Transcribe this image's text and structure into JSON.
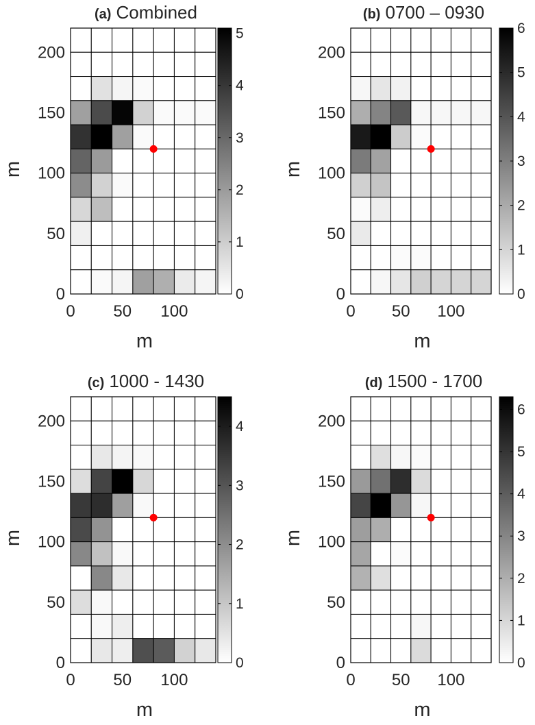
{
  "chart_data": [
    {
      "type": "heatmap",
      "title_tag": "(a)",
      "title": "Combined",
      "xlabel": "m",
      "ylabel": "m",
      "x_ticks": [
        0,
        50,
        100
      ],
      "y_ticks": [
        0,
        50,
        100,
        150,
        200
      ],
      "xlim": [
        0,
        140
      ],
      "ylim": [
        0,
        220
      ],
      "cell_size": 20,
      "colorbar_range": [
        0,
        5.1
      ],
      "colorbar_ticks": [
        0,
        1,
        2,
        3,
        4,
        5
      ],
      "marker": {
        "x": 80,
        "y": 120,
        "color": "#ff0000"
      },
      "values_top_to_bottom": [
        [
          0,
          0,
          0,
          0,
          0,
          0,
          0
        ],
        [
          0,
          0,
          0,
          0,
          0,
          0,
          0
        ],
        [
          0,
          0.6,
          0.2,
          0.1,
          0,
          0,
          0
        ],
        [
          1.9,
          3.6,
          5.0,
          0.9,
          0.1,
          0.1,
          0.1
        ],
        [
          4.1,
          5.1,
          1.9,
          0.1,
          0,
          0,
          0
        ],
        [
          3.1,
          2.0,
          0,
          0,
          0,
          0,
          0
        ],
        [
          2.3,
          0.9,
          0.1,
          0,
          0,
          0,
          0
        ],
        [
          0.8,
          1.3,
          0,
          0,
          0,
          0,
          0
        ],
        [
          0.3,
          0,
          0,
          0,
          0,
          0,
          0
        ],
        [
          0,
          0,
          0,
          0,
          0,
          0,
          0
        ],
        [
          0,
          0.1,
          0.2,
          1.9,
          1.6,
          0.4,
          0.2
        ]
      ]
    },
    {
      "type": "heatmap",
      "title_tag": "(b)",
      "title": "0700 – 0930",
      "xlabel": "m",
      "ylabel": "m",
      "x_ticks": [
        0,
        50,
        100
      ],
      "y_ticks": [
        0,
        50,
        100,
        150,
        200
      ],
      "xlim": [
        0,
        140
      ],
      "ylim": [
        0,
        220
      ],
      "cell_size": 20,
      "colorbar_range": [
        0,
        6
      ],
      "colorbar_ticks": [
        0,
        1,
        2,
        3,
        4,
        5,
        6
      ],
      "marker": {
        "x": 80,
        "y": 120,
        "color": "#ff0000"
      },
      "values_top_to_bottom": [
        [
          0,
          0,
          0,
          0,
          0,
          0,
          0
        ],
        [
          0,
          0,
          0,
          0,
          0,
          0,
          0
        ],
        [
          0.2,
          0.6,
          0.3,
          0,
          0,
          0,
          0
        ],
        [
          1.9,
          2.9,
          3.9,
          0.2,
          0.2,
          0.2,
          0.2
        ],
        [
          5.4,
          6.0,
          1.2,
          0.1,
          0,
          0,
          0
        ],
        [
          3.1,
          2.2,
          0,
          0,
          0,
          0,
          0
        ],
        [
          1.1,
          1.4,
          0,
          0,
          0,
          0,
          0
        ],
        [
          0.1,
          0.4,
          0,
          0,
          0,
          0,
          0
        ],
        [
          0.5,
          0,
          0,
          0,
          0,
          0,
          0
        ],
        [
          0,
          0,
          0.1,
          0.1,
          0,
          0,
          0
        ],
        [
          0,
          0.2,
          0.6,
          1.1,
          1.0,
          1.0,
          1.0
        ]
      ]
    },
    {
      "type": "heatmap",
      "title_tag": "(c)",
      "title": "1000 - 1430",
      "xlabel": "m",
      "ylabel": "m",
      "x_ticks": [
        0,
        50,
        100
      ],
      "y_ticks": [
        0,
        50,
        100,
        150,
        200
      ],
      "xlim": [
        0,
        140
      ],
      "ylim": [
        0,
        220
      ],
      "cell_size": 20,
      "colorbar_range": [
        0,
        4.5
      ],
      "colorbar_ticks": [
        0,
        1,
        2,
        3,
        4
      ],
      "marker": {
        "x": 80,
        "y": 120,
        "color": "#ff0000"
      },
      "values_top_to_bottom": [
        [
          0,
          0,
          0,
          0,
          0,
          0,
          0
        ],
        [
          0,
          0,
          0,
          0,
          0,
          0,
          0
        ],
        [
          0,
          0.4,
          0.2,
          0.1,
          0,
          0,
          0
        ],
        [
          0.6,
          3.3,
          4.5,
          0.7,
          0,
          0,
          0
        ],
        [
          3.5,
          3.7,
          1.7,
          0.1,
          0,
          0,
          0
        ],
        [
          3.2,
          1.9,
          0,
          0,
          0,
          0,
          0
        ],
        [
          2.1,
          1.1,
          0.1,
          0,
          0,
          0,
          0
        ],
        [
          0,
          2.1,
          0.4,
          0,
          0,
          0,
          0
        ],
        [
          0.6,
          0.1,
          0,
          0,
          0,
          0,
          0
        ],
        [
          0,
          0.1,
          0.3,
          0,
          0,
          0,
          0
        ],
        [
          0,
          0.4,
          0.3,
          3.1,
          2.9,
          0.8,
          0.4
        ]
      ]
    },
    {
      "type": "heatmap",
      "title_tag": "(d)",
      "title": "1500 - 1700",
      "xlabel": "m",
      "ylabel": "m",
      "x_ticks": [
        0,
        50,
        100
      ],
      "y_ticks": [
        0,
        50,
        100,
        150,
        200
      ],
      "xlim": [
        0,
        140
      ],
      "ylim": [
        0,
        220
      ],
      "cell_size": 20,
      "colorbar_range": [
        0,
        6.3
      ],
      "colorbar_ticks": [
        0,
        1,
        2,
        3,
        4,
        5,
        6
      ],
      "marker": {
        "x": 80,
        "y": 120,
        "color": "#ff0000"
      },
      "values_top_to_bottom": [
        [
          0,
          0,
          0,
          0,
          0,
          0,
          0
        ],
        [
          0,
          0,
          0,
          0,
          0,
          0,
          0
        ],
        [
          0,
          0.8,
          0.2,
          0.1,
          0,
          0,
          0
        ],
        [
          2.5,
          3.5,
          5.2,
          0.9,
          0,
          0,
          0
        ],
        [
          4.6,
          6.3,
          2.6,
          0.2,
          0,
          0,
          0
        ],
        [
          2.4,
          2.0,
          0,
          0,
          0,
          0,
          0
        ],
        [
          2.2,
          0,
          0.1,
          0,
          0,
          0,
          0
        ],
        [
          1.9,
          0.8,
          0,
          0,
          0,
          0,
          0
        ],
        [
          0,
          0,
          0,
          0,
          0,
          0,
          0
        ],
        [
          0,
          0,
          0,
          0.2,
          0,
          0,
          0
        ],
        [
          0,
          0,
          0,
          0.9,
          0,
          0,
          0
        ]
      ]
    }
  ]
}
